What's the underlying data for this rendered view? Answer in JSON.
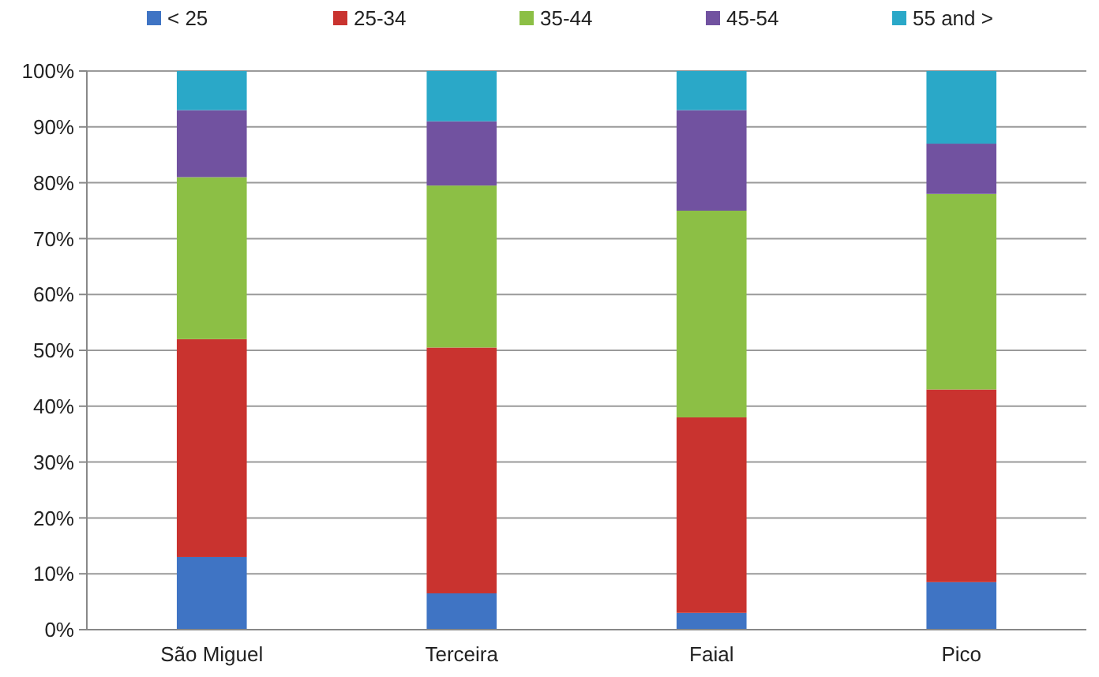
{
  "chart_data": {
    "type": "bar",
    "stacked": true,
    "categories": [
      "São Miguel",
      "Terceira",
      "Faial",
      "Pico"
    ],
    "series": [
      {
        "name": "< 25",
        "color": "#3f74c4",
        "values": [
          13,
          6.5,
          3,
          8.5
        ]
      },
      {
        "name": "25-34",
        "color": "#c9332f",
        "values": [
          39,
          44,
          35,
          34.5
        ]
      },
      {
        "name": "35-44",
        "color": "#8cbf45",
        "values": [
          29,
          29,
          37,
          35
        ]
      },
      {
        "name": "45-54",
        "color": "#7152a0",
        "values": [
          12,
          11.5,
          18,
          9
        ]
      },
      {
        "name": "55 and >",
        "color": "#2aa8c8",
        "values": [
          7,
          9,
          7,
          13
        ]
      }
    ],
    "ylim": [
      0,
      100
    ],
    "yticks": [
      {
        "value": 0,
        "label": "0%"
      },
      {
        "value": 10,
        "label": "10%"
      },
      {
        "value": 20,
        "label": "20%"
      },
      {
        "value": 30,
        "label": "30%"
      },
      {
        "value": 40,
        "label": "40%"
      },
      {
        "value": 50,
        "label": "50%"
      },
      {
        "value": 60,
        "label": "60%"
      },
      {
        "value": 70,
        "label": "70%"
      },
      {
        "value": 80,
        "label": "80%"
      },
      {
        "value": 90,
        "label": "90%"
      },
      {
        "value": 100,
        "label": "100%"
      }
    ],
    "grid": "y",
    "legend": "top"
  }
}
